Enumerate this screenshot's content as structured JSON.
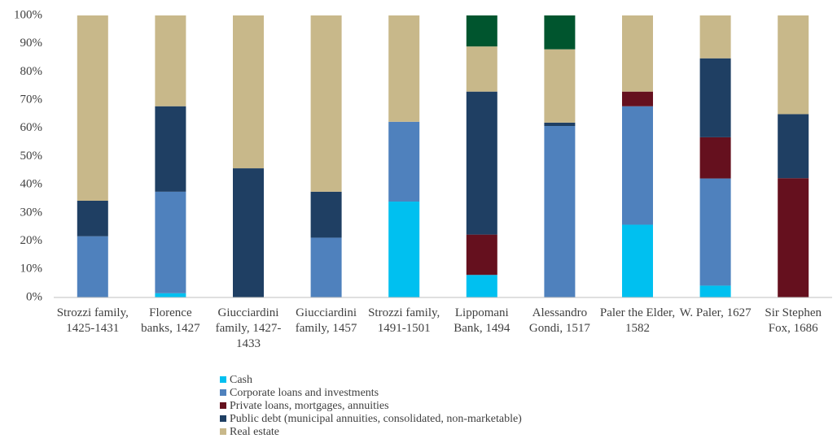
{
  "chart_data": {
    "type": "stacked_bar_100",
    "categories": [
      "Strozzi family, 1425-1431",
      "Florence banks, 1427",
      "Giucciardini family, 1427-1433",
      "Giucciardini family, 1457",
      "Strozzi family, 1491-1501",
      "Lippomani Bank, 1494",
      "Alessandro Gondi, 1517",
      "Paler the Elder, 1582",
      "W. Paler, 1627",
      "Sir Stephen Fox, 1686"
    ],
    "series": [
      {
        "name": "Cash",
        "color": "#00c0f0",
        "values": [
          0,
          1.5,
          0,
          0,
          34,
          8,
          0,
          25.8,
          4.2,
          0
        ]
      },
      {
        "name": "Corporate loans and investments",
        "color": "#4f81bd",
        "values": [
          21.7,
          36,
          0,
          21.2,
          28.3,
          0,
          60.8,
          42,
          38,
          0
        ]
      },
      {
        "name": "Private loans, mortgages, annuities",
        "color": "#65101e",
        "values": [
          0,
          0,
          0,
          0,
          0,
          14.3,
          0,
          5.2,
          14.6,
          42.3
        ]
      },
      {
        "name": "Public debt (municipal annuities, consolidated, non-marketable)",
        "color": "#1f3f63",
        "values": [
          12.6,
          30.3,
          45.8,
          16.3,
          0,
          50.7,
          1.2,
          0,
          28,
          22.7
        ]
      },
      {
        "name": "Real estate",
        "color": "#c8b88a",
        "values": [
          65.7,
          32.2,
          54.2,
          62.5,
          37.7,
          16,
          26,
          27,
          15.2,
          35
        ]
      },
      {
        "color": "#00552e",
        "values": [
          0,
          0,
          0,
          0,
          0,
          11,
          12,
          0,
          0,
          0
        ]
      }
    ],
    "ylim": [
      0,
      100
    ],
    "yticks": [
      {
        "value": 0,
        "label": "0%"
      },
      {
        "value": 10,
        "label": "10%"
      },
      {
        "value": 20,
        "label": "20%"
      },
      {
        "value": 30,
        "label": "30%"
      },
      {
        "value": 40,
        "label": "40%"
      },
      {
        "value": 50,
        "label": "50%"
      },
      {
        "value": 60,
        "label": "60%"
      },
      {
        "value": 70,
        "label": "70%"
      },
      {
        "value": 80,
        "label": "80%"
      },
      {
        "value": 90,
        "label": "90%"
      },
      {
        "value": 100,
        "label": "100%"
      }
    ],
    "grid": false
  }
}
